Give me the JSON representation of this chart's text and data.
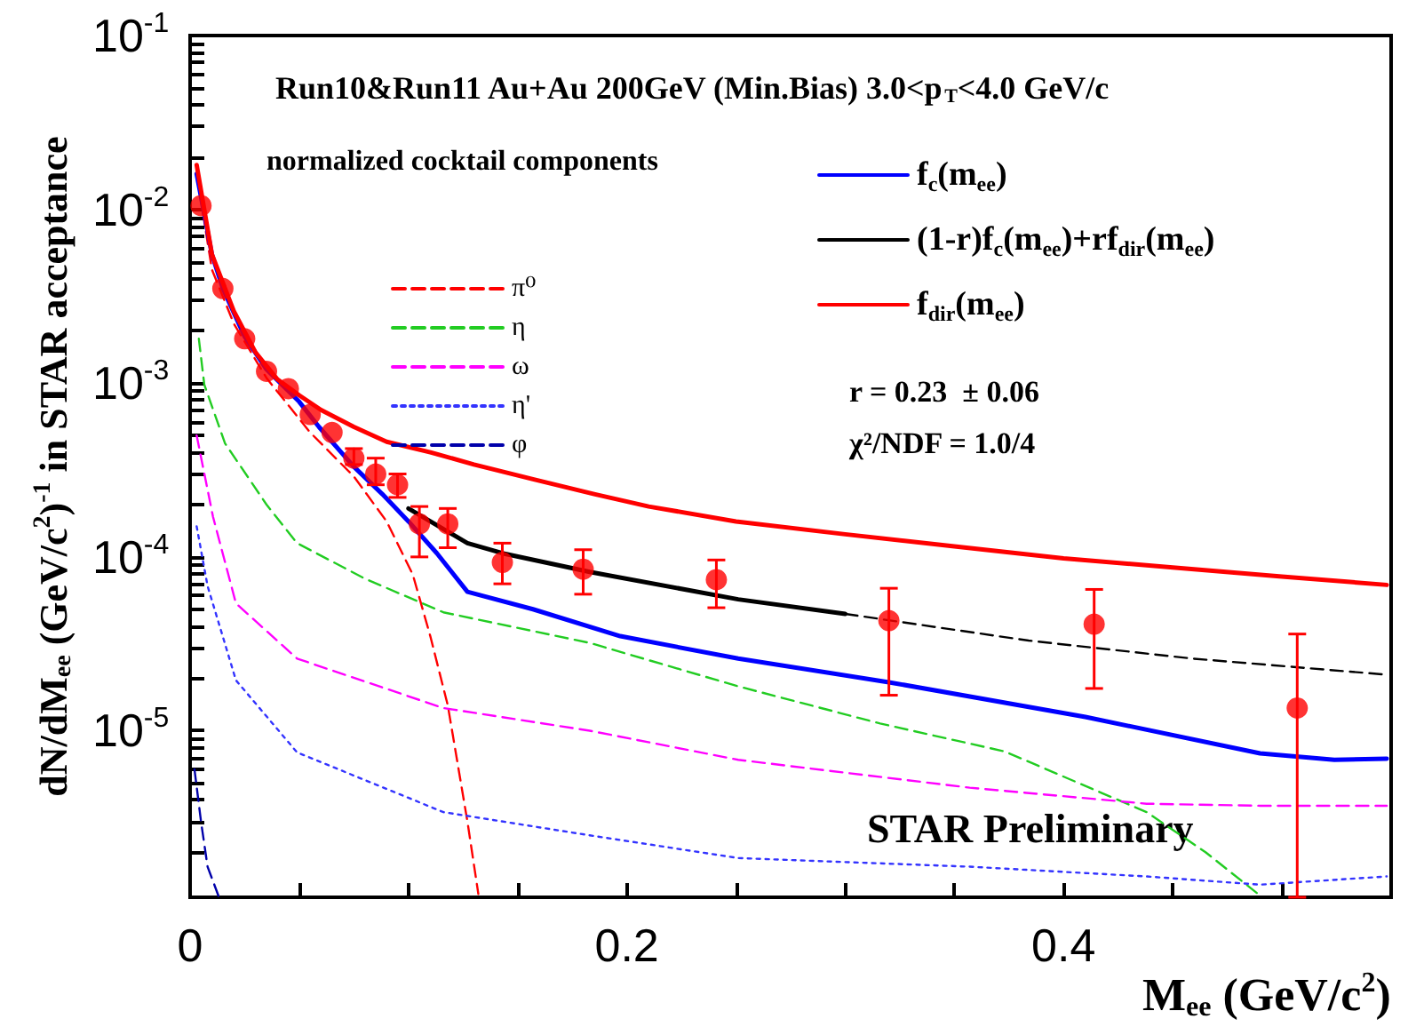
{
  "chart_data": {
    "type": "line",
    "title": "Run10&Run11 Au+Au 200GeV (Min.Bias) 3.0<p$_{T}$<4.0 GeV/c",
    "xlabel": "M$_{ee}$ (GeV/c$^{2}$)",
    "ylabel": "dN/dM$_{ee}$ (GeV/c$^{2}$)$^{-1}$ in STAR acceptance",
    "legend_title": "normalized cocktail components",
    "annotations": [
      "r = 0.23  ± 0.06",
      "χ²/NDF = 1.0/4",
      "STAR Preliminary"
    ],
    "log": "y",
    "grid": false,
    "legend": "top",
    "xlim": [
      0,
      0.55
    ],
    "xticks": [
      0,
      {
        "value": 0.05,
        "label": null
      },
      {
        "value": 0.1,
        "label": null
      },
      {
        "value": 0.15,
        "label": null
      },
      0.2,
      {
        "value": 0.25,
        "label": null
      },
      {
        "value": 0.3,
        "label": null
      },
      {
        "value": 0.35,
        "label": null
      },
      0.4,
      {
        "value": 0.45,
        "label": null
      },
      {
        "value": 0.5,
        "label": null
      }
    ],
    "ylim": [
      1.1e-06,
      0.1
    ],
    "yticks": [
      {
        "value": 2e-06,
        "label": null
      },
      {
        "value": 3e-06,
        "label": null
      },
      {
        "value": 4e-06,
        "label": null
      },
      {
        "value": 5e-06,
        "label": null
      },
      {
        "value": 6e-06,
        "label": null
      },
      {
        "value": 7e-06,
        "label": null
      },
      {
        "value": 8e-06,
        "label": null
      },
      {
        "value": 9e-06,
        "label": null
      },
      {
        "value": 1e-05,
        "label": "10$^{-5}$"
      },
      {
        "value": 2e-05,
        "label": null
      },
      {
        "value": 3e-05,
        "label": null
      },
      {
        "value": 4e-05,
        "label": null
      },
      {
        "value": 5e-05,
        "label": null
      },
      {
        "value": 6e-05,
        "label": null
      },
      {
        "value": 7e-05,
        "label": null
      },
      {
        "value": 8e-05,
        "label": null
      },
      {
        "value": 9e-05,
        "label": null
      },
      {
        "value": 0.0001,
        "label": "10$^{-4}$"
      },
      {
        "value": 0.0002,
        "label": null
      },
      {
        "value": 0.0003,
        "label": null
      },
      {
        "value": 0.0004,
        "label": null
      },
      {
        "value": 0.0005,
        "label": null
      },
      {
        "value": 0.0006,
        "label": null
      },
      {
        "value": 0.0007,
        "label": null
      },
      {
        "value": 0.0008,
        "label": null
      },
      {
        "value": 0.0009,
        "label": null
      },
      {
        "value": 0.001,
        "label": "10$^{-3}$"
      },
      {
        "value": 0.002,
        "label": null
      },
      {
        "value": 0.003,
        "label": null
      },
      {
        "value": 0.004,
        "label": null
      },
      {
        "value": 0.005,
        "label": null
      },
      {
        "value": 0.006,
        "label": null
      },
      {
        "value": 0.007,
        "label": null
      },
      {
        "value": 0.008,
        "label": null
      },
      {
        "value": 0.009,
        "label": null
      },
      {
        "value": 0.01,
        "label": "10$^{-2}$"
      },
      {
        "value": 0.02,
        "label": null
      },
      {
        "value": 0.03,
        "label": null
      },
      {
        "value": 0.04,
        "label": null
      },
      {
        "value": 0.05,
        "label": null
      },
      {
        "value": 0.06,
        "label": null
      },
      {
        "value": 0.07,
        "label": null
      },
      {
        "value": 0.08,
        "label": null
      },
      {
        "value": 0.09,
        "label": null
      },
      {
        "value": 0.1,
        "label": "10$^{-1}$"
      }
    ],
    "series": [
      {
        "name": "π⁰",
        "color": "#ff0000",
        "line_style": "dashed",
        "marker": "none",
        "x": [
          0.003,
          0.01,
          0.02,
          0.035,
          0.055,
          0.075,
          0.09,
          0.102,
          0.11,
          0.118,
          0.127,
          0.132
        ],
        "values": [
          0.016,
          0.0045,
          0.0022,
          0.00107,
          0.00052,
          0.00029,
          0.00016,
          7.9e-05,
          3.5e-05,
          1.4e-05,
          3e-06,
          1.15e-06
        ]
      },
      {
        "name": "η",
        "color": "#22cc22",
        "line_style": "dashed",
        "marker": "none",
        "x": [
          0.004,
          0.0065,
          0.016,
          0.035,
          0.049,
          0.08,
          0.116,
          0.183,
          0.251,
          0.316,
          0.373,
          0.438,
          0.465,
          0.491
        ],
        "values": [
          0.0018,
          0.00098,
          0.00045,
          0.0002,
          0.00012,
          7.5e-05,
          4.8e-05,
          3.2e-05,
          1.8e-05,
          1.1e-05,
          7.6e-06,
          3.4e-06,
          2e-06,
          1.1e-06
        ]
      },
      {
        "name": "ω",
        "color": "#ff00ff",
        "line_style": "dashed",
        "marker": "none",
        "x": [
          0.003,
          0.0105,
          0.021,
          0.049,
          0.116,
          0.183,
          0.251,
          0.357,
          0.438,
          0.49,
          0.548
        ],
        "values": [
          0.0005,
          0.00017,
          5.4e-05,
          2.6e-05,
          1.35e-05,
          1e-05,
          6.8e-06,
          4.7e-06,
          3.8e-06,
          3.7e-06,
          3.7e-06
        ]
      },
      {
        "name": "η'",
        "color": "#3333ff",
        "line_style": "dotted",
        "marker": "none",
        "x": [
          0.003,
          0.008,
          0.021,
          0.049,
          0.116,
          0.183,
          0.251,
          0.357,
          0.438,
          0.49,
          0.548
        ],
        "values": [
          0.00015,
          6.8e-05,
          1.95e-05,
          7.5e-06,
          3.4e-06,
          2.5e-06,
          1.85e-06,
          1.65e-06,
          1.45e-06,
          1.3e-06,
          1.45e-06
        ]
      },
      {
        "name": "φ",
        "color": "#0000aa",
        "line_style": "dashed",
        "marker": "none",
        "x": [
          0.002,
          0.005,
          0.008,
          0.013
        ],
        "values": [
          6e-06,
          3e-06,
          1.65e-06,
          1.12e-06
        ]
      },
      {
        "name": "f$_{c}$(m$_{ee}$)",
        "color": "#0000ff",
        "line_style": "solid",
        "marker": "none",
        "x": [
          0.003,
          0.01,
          0.015,
          0.025,
          0.035,
          0.05,
          0.059,
          0.075,
          0.088,
          0.1,
          0.113,
          0.127,
          0.157,
          0.197,
          0.251,
          0.32,
          0.41,
          0.49,
          0.524,
          0.548
        ],
        "values": [
          0.016,
          0.0055,
          0.0035,
          0.00185,
          0.0012,
          0.00078,
          0.00056,
          0.00033,
          0.00023,
          0.00016,
          0.000105,
          6.3e-05,
          5e-05,
          3.5e-05,
          2.6e-05,
          1.9e-05,
          1.2e-05,
          7.4e-06,
          6.8e-06,
          6.9e-06
        ]
      },
      {
        "name": "(1-r)f$_{c}$(m$_{ee}$)+rf$_{dir}$(m$_{ee}$)",
        "color": "#000000",
        "line_style": "solid",
        "marker": "none",
        "x": [
          0.1,
          0.127,
          0.143,
          0.183,
          0.251,
          0.3
        ],
        "values": [
          0.00019,
          0.00012,
          0.000105,
          8.2e-05,
          5.7e-05,
          4.7e-05
        ]
      },
      {
        "color": "#000000",
        "line_style": "dashed",
        "marker": "none",
        "x": [
          0.3,
          0.384,
          0.459,
          0.548
        ],
        "values": [
          4.7e-05,
          3.3e-05,
          2.6e-05,
          2.1e-05
        ]
      },
      {
        "name": "f$_{dir}$(m$_{ee}$)",
        "color": "#ff0000",
        "line_style": "solid",
        "marker": "none",
        "x": [
          0.003,
          0.01,
          0.02,
          0.03,
          0.04,
          0.05,
          0.06,
          0.075,
          0.09,
          0.11,
          0.13,
          0.157,
          0.185,
          0.21,
          0.25,
          0.3,
          0.35,
          0.4,
          0.45,
          0.5,
          0.548
        ],
        "values": [
          0.018,
          0.0055,
          0.0026,
          0.0015,
          0.00105,
          0.00085,
          0.0007,
          0.00056,
          0.00046,
          0.0004,
          0.00034,
          0.00028,
          0.00023,
          0.000195,
          0.00016,
          0.000135,
          0.000115,
          9.8e-05,
          8.7e-05,
          7.7e-05,
          6.9e-05
        ]
      },
      {
        "type": "scatter",
        "color": "#ff0000",
        "marker": "circle",
        "x": [
          0.005,
          0.015,
          0.025,
          0.035,
          0.045,
          0.055,
          0.065,
          0.075,
          0.085,
          0.095,
          0.105,
          0.118,
          0.143,
          0.18,
          0.241,
          0.32,
          0.414,
          0.507
        ],
        "values": [
          0.0105,
          0.0035,
          0.0018,
          0.00117,
          0.00093,
          0.00066,
          0.00052,
          0.00037,
          0.0003,
          0.00026,
          0.000155,
          0.000155,
          9.3e-05,
          8.5e-05,
          7.4e-05,
          4.3e-05,
          4.1e-05,
          1.35e-05
        ],
        "errors": [
          null,
          null,
          null,
          null,
          null,
          null,
          null,
          [
            0.00034,
            0.00042
          ],
          [
            0.00026,
            0.00037
          ],
          [
            0.00022,
            0.0003
          ],
          [
            0.0001,
            0.000195
          ],
          [
            0.000113,
            0.00019
          ],
          [
            7e-05,
            0.00012
          ],
          [
            6.1e-05,
            0.00011
          ],
          [
            5.1e-05,
            9.6e-05
          ],
          [
            1.6e-05,
            6.6e-05
          ],
          [
            1.75e-05,
            6.5e-05
          ],
          [
            1.1e-06,
            3.6e-05
          ]
        ]
      }
    ]
  }
}
